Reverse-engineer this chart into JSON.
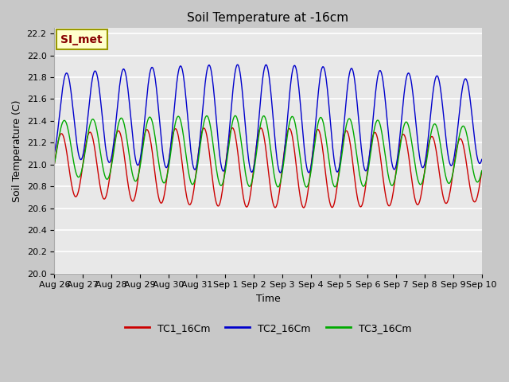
{
  "title": "Soil Temperature at -16cm",
  "xlabel": "Time",
  "ylabel": "Soil Temperature (C)",
  "ylim": [
    20.0,
    22.25
  ],
  "xtick_labels": [
    "Aug 26",
    "Aug 27",
    "Aug 28",
    "Aug 29",
    "Aug 30",
    "Aug 31",
    "Sep 1",
    "Sep 2",
    "Sep 3",
    "Sep 4",
    "Sep 5",
    "Sep 6",
    "Sep 7",
    "Sep 8",
    "Sep 9",
    "Sep 10"
  ],
  "legend_labels": [
    "TC1_16Cm",
    "TC2_16Cm",
    "TC3_16Cm"
  ],
  "line_colors": [
    "#cc0000",
    "#0000cc",
    "#00aa00"
  ],
  "annotation_text": "SI_met",
  "annotation_bg": "#ffffcc",
  "annotation_fg": "#880000",
  "fig_bg": "#c8c8c8",
  "plot_bg": "#e8e8e8",
  "title_fontsize": 11,
  "axis_fontsize": 9,
  "tick_fontsize": 8,
  "legend_fontsize": 9,
  "tc1_base": 21.0,
  "tc2_base": 21.45,
  "tc3_base": 21.15,
  "tc1_amp": 0.28,
  "tc2_amp": 0.38,
  "tc3_amp": 0.25,
  "tc1_phi": 0.0,
  "tc2_phi": 0.18,
  "tc3_phi": 0.1,
  "tc1_drift": -0.004,
  "tc2_drift": -0.004,
  "tc3_drift": -0.004
}
